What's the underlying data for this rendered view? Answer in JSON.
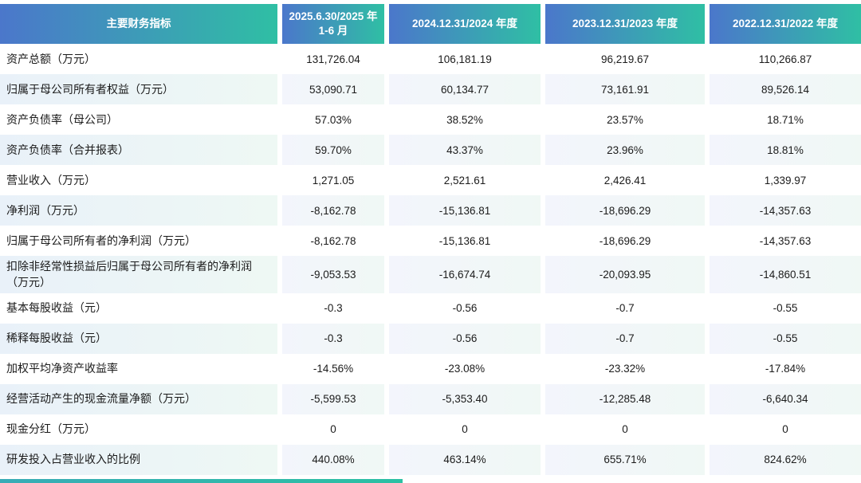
{
  "colors": {
    "header_gradient_start": "#4b77cb",
    "header_gradient_end": "#2fbfa4",
    "shaded_row_label_start": "#e9f1f9",
    "shaded_row_label_end": "#eef8f4",
    "shaded_row_value_start": "#f3f5fc",
    "shaded_row_value_end": "#f0f8f5",
    "header_text": "#ffffff",
    "body_text": "#1b1b1b",
    "page_background": "#ffffff"
  },
  "table": {
    "header": [
      "主要财务指标",
      "2025.6.30/2025 年 1-6 月",
      "2024.12.31/2024 年度",
      "2023.12.31/2023 年度",
      "2022.12.31/2022 年度"
    ],
    "rows": [
      {
        "label": "资产总额（万元）",
        "values": [
          "131,726.04",
          "106,181.19",
          "96,219.67",
          "110,266.87"
        ]
      },
      {
        "label": "归属于母公司所有者权益（万元）",
        "values": [
          "53,090.71",
          "60,134.77",
          "73,161.91",
          "89,526.14"
        ]
      },
      {
        "label": "资产负债率（母公司）",
        "values": [
          "57.03%",
          "38.52%",
          "23.57%",
          "18.71%"
        ]
      },
      {
        "label": "资产负债率（合并报表）",
        "values": [
          "59.70%",
          "43.37%",
          "23.96%",
          "18.81%"
        ]
      },
      {
        "label": "营业收入（万元）",
        "values": [
          "1,271.05",
          "2,521.61",
          "2,426.41",
          "1,339.97"
        ]
      },
      {
        "label": "净利润（万元）",
        "values": [
          "-8,162.78",
          "-15,136.81",
          "-18,696.29",
          "-14,357.63"
        ]
      },
      {
        "label": "归属于母公司所有者的净利润（万元）",
        "values": [
          "-8,162.78",
          "-15,136.81",
          "-18,696.29",
          "-14,357.63"
        ]
      },
      {
        "label": "扣除非经常性损益后归属于母公司所有者的净利润（万元）",
        "values": [
          "-9,053.53",
          "-16,674.74",
          "-20,093.95",
          "-14,860.51"
        ]
      },
      {
        "label": "基本每股收益（元）",
        "values": [
          "-0.3",
          "-0.56",
          "-0.7",
          "-0.55"
        ]
      },
      {
        "label": "稀释每股收益（元）",
        "values": [
          "-0.3",
          "-0.56",
          "-0.7",
          "-0.55"
        ]
      },
      {
        "label": "加权平均净资产收益率",
        "values": [
          "-14.56%",
          "-23.08%",
          "-23.32%",
          "-17.84%"
        ]
      },
      {
        "label": "经营活动产生的现金流量净额（万元）",
        "values": [
          "-5,599.53",
          "-5,353.40",
          "-12,285.48",
          "-6,640.34"
        ]
      },
      {
        "label": "现金分红（万元）",
        "values": [
          "0",
          "0",
          "0",
          "0"
        ]
      },
      {
        "label": "研发投入占营业收入的比例",
        "values": [
          "440.08%",
          "463.14%",
          "655.71%",
          "824.62%"
        ]
      }
    ]
  }
}
